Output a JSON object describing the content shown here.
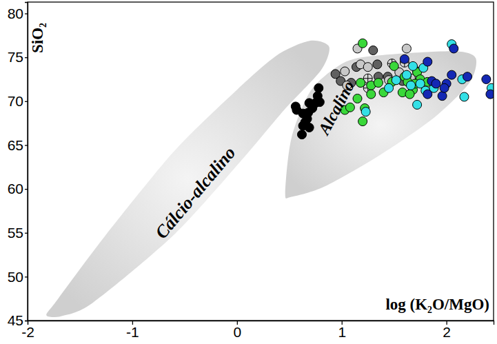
{
  "chart_data": {
    "type": "scatter",
    "x_label": "log (K₂O/MgO)",
    "y_label": "SiO₂",
    "xlim": [
      -2,
      2.45
    ],
    "ylim": [
      45,
      81.3
    ],
    "xticks": [
      -2,
      -1,
      0,
      1,
      2
    ],
    "yticks": [
      45,
      50,
      55,
      60,
      65,
      70,
      75,
      80
    ],
    "grid": false,
    "fields": [
      {
        "name": "Cálcio-alcalino",
        "color": "#cfcfcf",
        "x": [
          -1.82,
          -1.72,
          -1.25,
          -0.6,
          0,
          0.39,
          0.7,
          0.88,
          0.8,
          0.45,
          0.06,
          -0.6,
          -1.38,
          -1.68
        ],
        "y": [
          45.6,
          47.3,
          54.8,
          64.3,
          71.3,
          75.3,
          76.9,
          76.2,
          73.5,
          69,
          63.5,
          54.8,
          47,
          45.5
        ]
      },
      {
        "name": "Alcalino",
        "color": "#cfcfcf",
        "x": [
          0.46,
          0.52,
          0.71,
          1.04,
          1.43,
          2.08,
          2.28,
          2.22,
          1.89,
          1.37,
          0.84,
          0.52
        ],
        "y": [
          59.5,
          65.8,
          71.3,
          74.5,
          75.3,
          75.7,
          74.9,
          72.1,
          68.2,
          63.9,
          60.3,
          59.1
        ]
      }
    ],
    "series": [
      {
        "color": "#000000",
        "marker": "circle",
        "x": [
          0.56,
          0.57,
          0.63,
          0.68,
          0.67,
          0.65,
          0.63,
          0.69,
          0.75,
          0.77,
          0.78,
          0.79,
          0.72,
          0.69,
          0.62
        ],
        "values": [
          69.4,
          69.0,
          68.6,
          68.7,
          68.0,
          67.6,
          67.2,
          69.8,
          69.8,
          70.6,
          71.5,
          69.9,
          69.2,
          67.0,
          66.2
        ]
      },
      {
        "color": "#606060",
        "marker": "circle",
        "x": [
          1.3,
          0.94,
          0.99,
          1.09,
          1.14,
          1.34,
          1.35,
          1.44,
          1.58
        ],
        "values": [
          75.8,
          73.1,
          72.3,
          72.1,
          73.9,
          74.2,
          72.8,
          72.8,
          72.3
        ]
      },
      {
        "color": "#c8c8c8",
        "marker": "circle",
        "x": [
          1.15,
          1.03,
          1.18,
          1.25,
          1.62,
          1.55,
          1.45,
          1.66,
          1.05
        ],
        "values": [
          76.0,
          73.4,
          74.2,
          73.9,
          76.0,
          73.3,
          72.4,
          72.6,
          71.8
        ]
      },
      {
        "color": "#d8d8d8",
        "marker": "circle-cross",
        "x": [
          1.25,
          1.25,
          1.48,
          1.6,
          1.72,
          1.62
        ],
        "values": [
          72.6,
          71.5,
          74.3,
          74.4,
          73.4,
          72.9
        ]
      },
      {
        "color": "#3ad83a",
        "marker": "circle",
        "x": [
          1.2,
          1.03,
          1.08,
          1.15,
          1.2,
          1.18,
          1.28,
          1.28,
          1.35,
          1.4,
          1.48,
          1.5,
          1.6,
          1.63,
          1.68,
          1.72,
          1.75,
          1.58,
          1.65,
          1.82,
          1.7,
          1.22
        ],
        "values": [
          76.6,
          69.0,
          69.3,
          70.3,
          67.7,
          72.1,
          71.8,
          70.8,
          72.1,
          71.0,
          72.2,
          74.0,
          72.8,
          72.2,
          71.3,
          73.3,
          72.5,
          71.0,
          70.8,
          72.2,
          72.0,
          69.2
        ]
      },
      {
        "color": "#33e0e6",
        "marker": "circle",
        "x": [
          1.23,
          1.45,
          1.52,
          1.62,
          1.66,
          1.75,
          1.8,
          1.88,
          1.72,
          1.68,
          2.05,
          2.15,
          2.17,
          2.43,
          1.78
        ],
        "values": [
          68.8,
          71.5,
          72.4,
          73.0,
          71.8,
          72.0,
          71.2,
          71.5,
          69.6,
          74.0,
          76.5,
          72.5,
          70.5,
          71.5,
          73.8
        ]
      },
      {
        "color": "#1428b4",
        "marker": "circle",
        "x": [
          1.6,
          1.82,
          1.86,
          1.82,
          1.96,
          2.0,
          2.05,
          2.07,
          2.2,
          2.38,
          2.42,
          1.9,
          1.98
        ],
        "values": [
          74.8,
          74.5,
          72.3,
          70.8,
          70.6,
          72.0,
          73.0,
          76.0,
          72.8,
          72.5,
          70.8,
          72.0,
          71.5
        ]
      }
    ]
  }
}
